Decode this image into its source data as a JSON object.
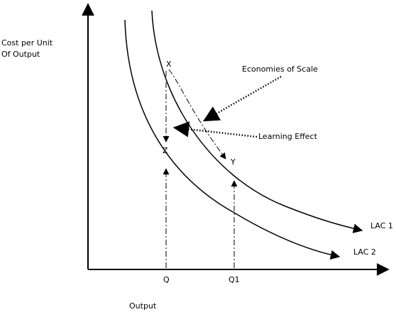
{
  "y_axis_label": [
    "Cost per Unit",
    "Of Output"
  ],
  "x_axis_label": "Output",
  "x_ticks": [
    "Q",
    "Q1"
  ],
  "curves": [
    "LAC 1",
    "LAC 2"
  ],
  "points": [
    "X",
    "Y",
    "Z"
  ],
  "annotations": [
    "Economies of Scale",
    "Learning Effect"
  ]
}
